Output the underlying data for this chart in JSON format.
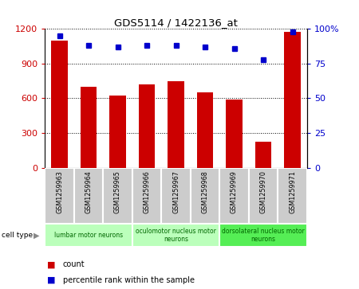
{
  "title": "GDS5114 / 1422136_at",
  "samples": [
    "GSM1259963",
    "GSM1259964",
    "GSM1259965",
    "GSM1259966",
    "GSM1259967",
    "GSM1259968",
    "GSM1259969",
    "GSM1259970",
    "GSM1259971"
  ],
  "counts": [
    1100,
    700,
    625,
    720,
    750,
    650,
    590,
    225,
    1175
  ],
  "percentiles": [
    95,
    88,
    87,
    88,
    88,
    87,
    86,
    78,
    98
  ],
  "bar_color": "#cc0000",
  "dot_color": "#0000cc",
  "ylim_left": [
    0,
    1200
  ],
  "ylim_right": [
    0,
    100
  ],
  "yticks_left": [
    0,
    300,
    600,
    900,
    1200
  ],
  "yticks_right": [
    0,
    25,
    50,
    75,
    100
  ],
  "yticklabels_right": [
    "0",
    "25",
    "50",
    "75",
    "100%"
  ],
  "cell_type_groups": [
    {
      "label": "lumbar motor neurons",
      "start": 0,
      "end": 3,
      "color": "#bbffbb"
    },
    {
      "label": "oculomotor nucleus motor\nneurons",
      "start": 3,
      "end": 6,
      "color": "#bbffbb"
    },
    {
      "label": "dorsolateral nucleus motor\nneurons",
      "start": 6,
      "end": 9,
      "color": "#55ee55"
    }
  ],
  "cell_type_label": "cell type",
  "legend_count_label": "count",
  "legend_pct_label": "percentile rank within the sample",
  "bar_color_legend": "#cc0000",
  "dot_color_legend": "#0000cc",
  "bar_width": 0.55,
  "sample_box_color": "#cccccc",
  "sample_box_edge": "#999999"
}
